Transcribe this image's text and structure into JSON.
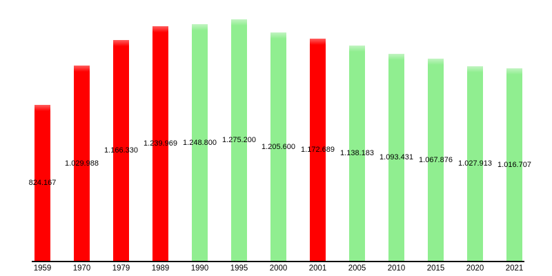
{
  "chart_data": {
    "type": "bar",
    "title": "",
    "xlabel": "",
    "ylabel": "",
    "grid": false,
    "legend": null,
    "ylim": [
      0,
      1377432
    ],
    "label_position": "centered-on-bar-middle",
    "categories": [
      "1959",
      "1970",
      "1979",
      "1989",
      "1990",
      "1995",
      "2000",
      "2001",
      "2005",
      "2010",
      "2015",
      "2020",
      "2021"
    ],
    "values": [
      824167,
      1029988,
      1166330,
      1239969,
      1248800,
      1275200,
      1205600,
      1172689,
      1138183,
      1093431,
      1067876,
      1027913,
      1016707
    ],
    "value_labels": [
      "824.167",
      "1.029.988",
      "1.166.330",
      "1.239.969",
      "1.248.800",
      "1.275.200",
      "1.205.600",
      "1.172.689",
      "1.138.183",
      "1.093.431",
      "1.067.876",
      "1.027.913",
      "1.016.707"
    ],
    "bar_colors": [
      "red",
      "red",
      "red",
      "red",
      "green",
      "green",
      "green",
      "red",
      "green",
      "green",
      "green",
      "green",
      "green"
    ],
    "colors": {
      "red": "#ff0000",
      "red_cap": "#ff5f5f",
      "green": "#90ee90",
      "green_cap": "#c2f4c2",
      "axis": "#000000",
      "text": "#000000",
      "background": "#ffffff"
    }
  }
}
